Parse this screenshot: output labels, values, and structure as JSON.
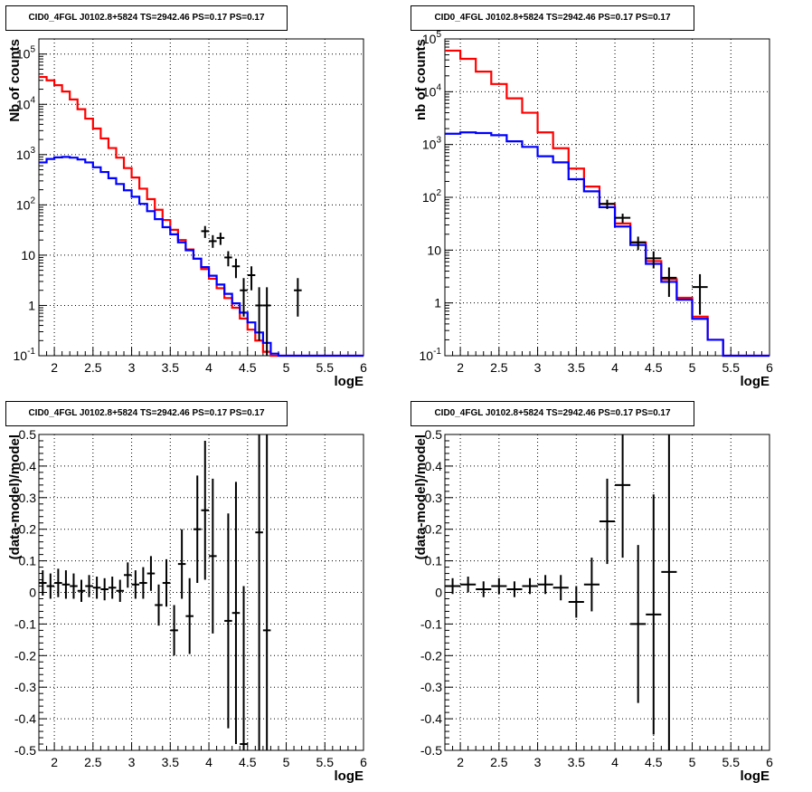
{
  "colors": {
    "data": "#000000",
    "total_model": "#ff0000",
    "component_model": "#0000ff",
    "grid": "#000000"
  },
  "chart_data": [
    {
      "type": "line",
      "title": "CID0_4FGL J0102.8+5824 TS=2942.46 PS=0.17 PS=0.17",
      "xlabel": "logE",
      "ylabel": "Nb of counts",
      "xlim": [
        1.8,
        6
      ],
      "ylim": [
        0.1,
        200000
      ],
      "yscale": "log",
      "grid": true,
      "x_ticks": [
        "2",
        "2.5",
        "3",
        "3.5",
        "4",
        "4.5",
        "5",
        "5.5",
        "6"
      ],
      "y_ticks": [
        {
          "v": 0.1,
          "m": "10",
          "e": "-1"
        },
        {
          "v": 1,
          "m": "1",
          "e": ""
        },
        {
          "v": 10,
          "m": "10",
          "e": ""
        },
        {
          "v": 100,
          "m": "10",
          "e": "2"
        },
        {
          "v": 1000,
          "m": "10",
          "e": "3"
        },
        {
          "v": 10000,
          "m": "10",
          "e": "4"
        },
        {
          "v": 100000,
          "m": "10",
          "e": "5"
        }
      ],
      "edges": [
        1.8,
        1.9,
        2.0,
        2.1,
        2.2,
        2.3,
        2.4,
        2.5,
        2.6,
        2.7,
        2.8,
        2.9,
        3.0,
        3.1,
        3.2,
        3.3,
        3.4,
        3.5,
        3.6,
        3.7,
        3.8,
        3.9,
        4.0,
        4.1,
        4.2,
        4.3,
        4.4,
        4.5,
        4.6,
        4.7,
        4.8,
        4.9,
        5.0,
        5.1,
        5.2,
        5.3,
        5.4,
        5.5,
        5.6,
        5.7,
        5.8,
        5.9,
        6.0
      ],
      "series": [
        {
          "kind": "hist",
          "color": "#ff0000",
          "values": [
            35000,
            30000,
            24000,
            18000,
            12500,
            8000,
            5200,
            3300,
            2100,
            1350,
            870,
            540,
            350,
            210,
            130,
            80,
            50,
            32,
            20,
            13,
            8.5,
            5.3,
            3.4,
            2.2,
            1.4,
            0.9,
            0.55,
            0.33,
            0.2,
            0.12,
            0.1,
            0.1,
            0.1,
            0.1,
            0.1,
            0.1,
            0.1,
            0.1,
            0.1,
            0.1,
            0.1,
            0.1
          ]
        },
        {
          "kind": "hist",
          "color": "#0000ff",
          "values": [
            700,
            820,
            880,
            900,
            870,
            800,
            700,
            560,
            450,
            340,
            260,
            195,
            145,
            105,
            75,
            52,
            36,
            26,
            18,
            12.5,
            8.5,
            5.8,
            3.9,
            2.6,
            1.7,
            1.1,
            0.72,
            0.46,
            0.29,
            0.18,
            0.11,
            0.1,
            0.1,
            0.1,
            0.1,
            0.1,
            0.1,
            0.1,
            0.1,
            0.1,
            0.1,
            0.1
          ]
        }
      ],
      "points": [
        {
          "x": 3.95,
          "y": 30,
          "xerr": 0.05,
          "ylo": 22,
          "yhi": 38
        },
        {
          "x": 4.05,
          "y": 19,
          "xerr": 0.05,
          "ylo": 14,
          "yhi": 25
        },
        {
          "x": 4.15,
          "y": 22,
          "xerr": 0.05,
          "ylo": 16,
          "yhi": 28
        },
        {
          "x": 4.25,
          "y": 9,
          "xerr": 0.05,
          "ylo": 6,
          "yhi": 12
        },
        {
          "x": 4.35,
          "y": 6,
          "xerr": 0.05,
          "ylo": 3.5,
          "yhi": 8.5
        },
        {
          "x": 4.45,
          "y": 2,
          "xerr": 0.05,
          "ylo": 0.6,
          "yhi": 3.5
        },
        {
          "x": 4.55,
          "y": 4,
          "xerr": 0.05,
          "ylo": 2,
          "yhi": 6
        },
        {
          "x": 4.65,
          "y": 1,
          "xerr": 0.05,
          "ylo": 0.2,
          "yhi": 2.3
        },
        {
          "x": 4.75,
          "y": 1,
          "xerr": 0.05,
          "ylo": 0.1,
          "yhi": 2.3
        },
        {
          "x": 5.15,
          "y": 2,
          "xerr": 0.05,
          "ylo": 0.6,
          "yhi": 3.5
        }
      ]
    },
    {
      "type": "line",
      "title": "CID0_4FGL J0102.8+5824 TS=2942.46 PS=0.17 PS=0.17",
      "xlabel": "logE",
      "ylabel": "nb of counts",
      "xlim": [
        1.8,
        6
      ],
      "ylim": [
        0.1,
        100000
      ],
      "yscale": "log",
      "grid": true,
      "x_ticks": [
        "2",
        "2.5",
        "3",
        "3.5",
        "4",
        "4.5",
        "5",
        "5.5",
        "6"
      ],
      "y_ticks": [
        {
          "v": 0.1,
          "m": "10",
          "e": "-1"
        },
        {
          "v": 1,
          "m": "1",
          "e": ""
        },
        {
          "v": 10,
          "m": "10",
          "e": ""
        },
        {
          "v": 100,
          "m": "10",
          "e": "2"
        },
        {
          "v": 1000,
          "m": "10",
          "e": "3"
        },
        {
          "v": 10000,
          "m": "10",
          "e": "4"
        },
        {
          "v": 100000,
          "m": "10",
          "e": "5"
        }
      ],
      "edges": [
        1.8,
        2.0,
        2.2,
        2.4,
        2.6,
        2.8,
        3.0,
        3.2,
        3.4,
        3.6,
        3.8,
        4.0,
        4.2,
        4.4,
        4.6,
        4.8,
        5.0,
        5.2,
        5.4,
        5.6,
        5.8,
        6.0
      ],
      "series": [
        {
          "kind": "hist",
          "color": "#ff0000",
          "values": [
            60000,
            42000,
            24000,
            14000,
            7500,
            4000,
            1700,
            850,
            350,
            160,
            75,
            32,
            14,
            6.2,
            2.8,
            1.25,
            0.55,
            0.2,
            0.1,
            0.1,
            0.1
          ]
        },
        {
          "kind": "hist",
          "color": "#0000ff",
          "values": [
            1600,
            1700,
            1650,
            1500,
            1150,
            900,
            600,
            460,
            220,
            130,
            65,
            28,
            12.5,
            5.5,
            2.5,
            1.15,
            0.5,
            0.2,
            0.1,
            0.1,
            0.1
          ]
        }
      ],
      "points": [
        {
          "x": 3.9,
          "y": 75,
          "xerr": 0.1,
          "ylo": 60,
          "yhi": 90
        },
        {
          "x": 4.1,
          "y": 41,
          "xerr": 0.1,
          "ylo": 33,
          "yhi": 49
        },
        {
          "x": 4.3,
          "y": 14,
          "xerr": 0.1,
          "ylo": 10,
          "yhi": 18
        },
        {
          "x": 4.5,
          "y": 7,
          "xerr": 0.1,
          "ylo": 4.5,
          "yhi": 9.5
        },
        {
          "x": 4.7,
          "y": 3,
          "xerr": 0.1,
          "ylo": 1.3,
          "yhi": 4.7
        },
        {
          "x": 5.1,
          "y": 2,
          "xerr": 0.1,
          "ylo": 0.6,
          "yhi": 3.5
        }
      ]
    },
    {
      "type": "scatter",
      "title": "CID0_4FGL J0102.8+5824 TS=2942.46 PS=0.17 PS=0.17",
      "xlabel": "logE",
      "ylabel": "(data-model)/model",
      "xlim": [
        1.8,
        6
      ],
      "ylim": [
        -0.5,
        0.5
      ],
      "grid": true,
      "x_ticks": [
        "2",
        "2.5",
        "3",
        "3.5",
        "4",
        "4.5",
        "5",
        "5.5",
        "6"
      ],
      "y_ticks": [
        "-0.5",
        "-0.4",
        "-0.3",
        "-0.2",
        "-0.1",
        "0",
        "0.1",
        "0.2",
        "0.3",
        "0.4",
        "0.5"
      ],
      "points": [
        {
          "x": 1.85,
          "y": 0.03,
          "xerr": 0.05,
          "err": 0.04
        },
        {
          "x": 1.95,
          "y": 0.02,
          "xerr": 0.05,
          "err": 0.04
        },
        {
          "x": 2.05,
          "y": 0.03,
          "xerr": 0.05,
          "err": 0.045
        },
        {
          "x": 2.15,
          "y": 0.025,
          "xerr": 0.05,
          "err": 0.045
        },
        {
          "x": 2.25,
          "y": 0.02,
          "xerr": 0.05,
          "err": 0.04
        },
        {
          "x": 2.35,
          "y": 0.005,
          "xerr": 0.05,
          "err": 0.035
        },
        {
          "x": 2.45,
          "y": 0.02,
          "xerr": 0.05,
          "err": 0.035
        },
        {
          "x": 2.55,
          "y": 0.015,
          "xerr": 0.05,
          "err": 0.035
        },
        {
          "x": 2.65,
          "y": 0.01,
          "xerr": 0.05,
          "err": 0.035
        },
        {
          "x": 2.75,
          "y": 0.015,
          "xerr": 0.05,
          "err": 0.035
        },
        {
          "x": 2.85,
          "y": 0.005,
          "xerr": 0.05,
          "err": 0.035
        },
        {
          "x": 2.95,
          "y": 0.055,
          "xerr": 0.05,
          "err": 0.04
        },
        {
          "x": 3.05,
          "y": 0.025,
          "xerr": 0.05,
          "err": 0.045
        },
        {
          "x": 3.15,
          "y": 0.03,
          "xerr": 0.05,
          "err": 0.05
        },
        {
          "x": 3.25,
          "y": 0.06,
          "xerr": 0.05,
          "err": 0.055
        },
        {
          "x": 3.35,
          "y": -0.04,
          "xerr": 0.05,
          "err": 0.065
        },
        {
          "x": 3.45,
          "y": 0.03,
          "xerr": 0.05,
          "err": 0.075
        },
        {
          "x": 3.55,
          "y": -0.12,
          "xerr": 0.05,
          "err": 0.08
        },
        {
          "x": 3.65,
          "y": 0.09,
          "xerr": 0.05,
          "err": 0.11
        },
        {
          "x": 3.75,
          "y": -0.075,
          "xerr": 0.05,
          "err": 0.12
        },
        {
          "x": 3.85,
          "y": 0.2,
          "xerr": 0.05,
          "err": 0.17
        },
        {
          "x": 3.95,
          "y": 0.26,
          "xerr": 0.05,
          "err": 0.22
        },
        {
          "x": 4.05,
          "y": 0.115,
          "xerr": 0.05,
          "err": 0.245
        },
        {
          "x": 4.25,
          "y": -0.09,
          "xerr": 0.05,
          "err": 0.34
        },
        {
          "x": 4.35,
          "y": -0.065,
          "xerr": 0.05,
          "err": 0.415
        },
        {
          "x": 4.45,
          "y": -0.48,
          "xerr": 0.05,
          "err": 0.5
        },
        {
          "x": 4.65,
          "y": 0.19,
          "xerr": 0.05,
          "err": 0.7
        },
        {
          "x": 4.75,
          "y": -0.12,
          "xerr": 0.05,
          "err": 0.7
        }
      ]
    },
    {
      "type": "scatter",
      "title": "CID0_4FGL J0102.8+5824 TS=2942.46 PS=0.17 PS=0.17",
      "xlabel": "logE",
      "ylabel": "(data-model)/model",
      "xlim": [
        1.8,
        6
      ],
      "ylim": [
        -0.5,
        0.5
      ],
      "grid": true,
      "x_ticks": [
        "2",
        "2.5",
        "3",
        "3.5",
        "4",
        "4.5",
        "5",
        "5.5",
        "6"
      ],
      "y_ticks": [
        "-0.5",
        "-0.4",
        "-0.3",
        "-0.2",
        "-0.1",
        "0",
        "0.1",
        "0.2",
        "0.3",
        "0.4",
        "0.5"
      ],
      "points": [
        {
          "x": 1.9,
          "y": 0.02,
          "xerr": 0.1,
          "err": 0.025
        },
        {
          "x": 2.1,
          "y": 0.025,
          "xerr": 0.1,
          "err": 0.025
        },
        {
          "x": 2.3,
          "y": 0.01,
          "xerr": 0.1,
          "err": 0.025
        },
        {
          "x": 2.5,
          "y": 0.02,
          "xerr": 0.1,
          "err": 0.025
        },
        {
          "x": 2.7,
          "y": 0.01,
          "xerr": 0.1,
          "err": 0.025
        },
        {
          "x": 2.9,
          "y": 0.02,
          "xerr": 0.1,
          "err": 0.025
        },
        {
          "x": 3.1,
          "y": 0.025,
          "xerr": 0.1,
          "err": 0.03
        },
        {
          "x": 3.3,
          "y": 0.015,
          "xerr": 0.1,
          "err": 0.04
        },
        {
          "x": 3.5,
          "y": -0.03,
          "xerr": 0.1,
          "err": 0.05
        },
        {
          "x": 3.7,
          "y": 0.025,
          "xerr": 0.1,
          "err": 0.085
        },
        {
          "x": 3.9,
          "y": 0.225,
          "xerr": 0.1,
          "err": 0.135
        },
        {
          "x": 4.1,
          "y": 0.34,
          "xerr": 0.1,
          "err": 0.23
        },
        {
          "x": 4.3,
          "y": -0.1,
          "xerr": 0.1,
          "err": 0.25
        },
        {
          "x": 4.5,
          "y": -0.07,
          "xerr": 0.1,
          "err": 0.38
        },
        {
          "x": 4.7,
          "y": 0.065,
          "xerr": 0.1,
          "err": 0.7
        }
      ]
    }
  ]
}
